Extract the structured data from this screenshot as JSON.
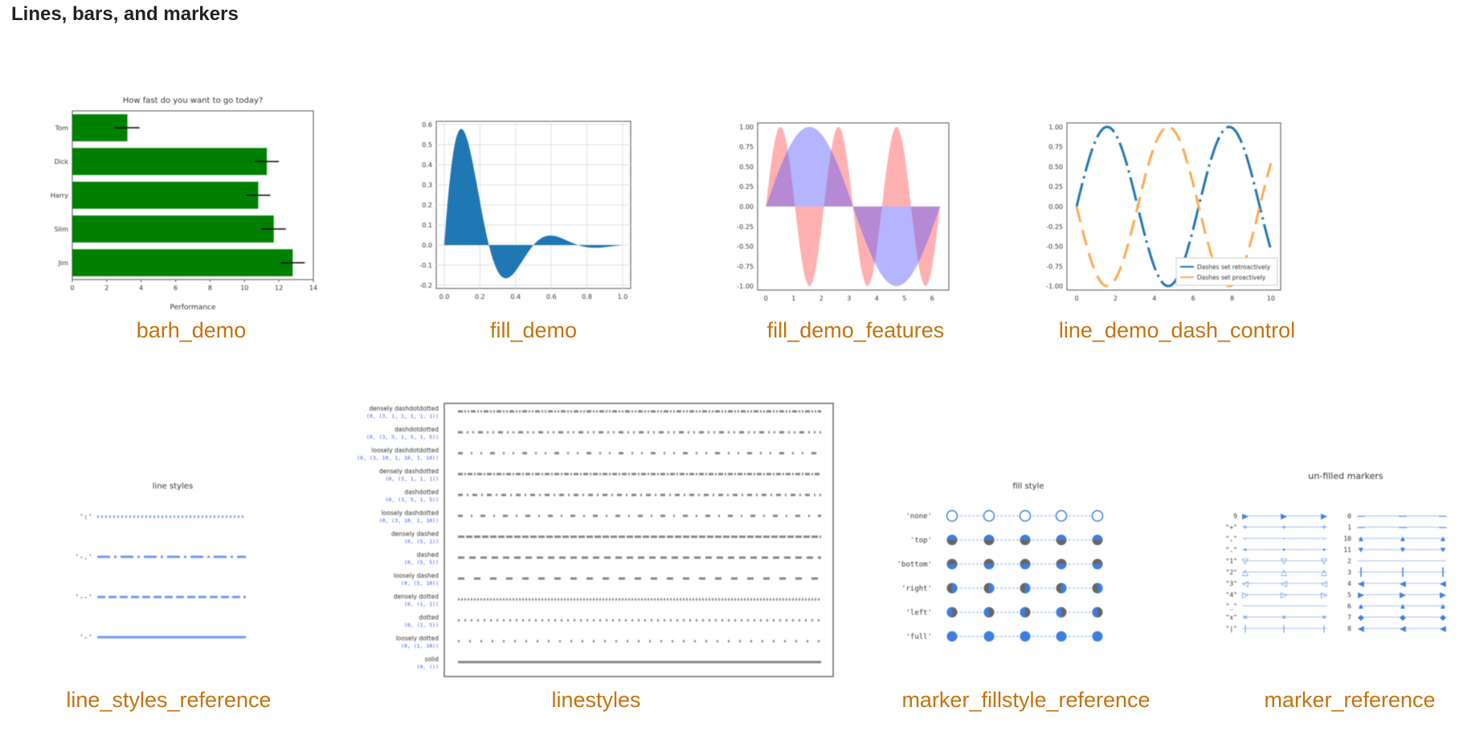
{
  "section": {
    "title": "Lines, bars, and markers"
  },
  "captions": {
    "barh_demo": "barh_demo",
    "fill_demo": "fill_demo",
    "fill_demo_features": "fill_demo_features",
    "line_demo_dash_control": "line_demo_dash_control",
    "line_styles_reference": "line_styles_reference",
    "linestyles": "linestyles",
    "marker_fillstyle_reference": "marker_fillstyle_reference",
    "marker_reference": "marker_reference"
  },
  "colors": {
    "caption_link": "#c4730f",
    "bar_green": "#008000",
    "fill_blue": "#1f77b4",
    "marker_blue": "#3d7fe0"
  },
  "chart_data": [
    {
      "type": "bar",
      "orientation": "horizontal",
      "title": "How fast do you want to go today?",
      "xlabel": "Performance",
      "categories": [
        "Tom",
        "Dick",
        "Harry",
        "Slim",
        "Jim"
      ],
      "values": [
        3.2,
        11.3,
        10.8,
        11.7,
        12.8
      ],
      "xlim": [
        0,
        14
      ],
      "xticks": [
        "0",
        "2",
        "4",
        "6",
        "8",
        "10",
        "12",
        "14"
      ]
    },
    {
      "type": "area",
      "xlim": [
        0,
        1
      ],
      "ylim": [
        -0.2,
        0.6
      ],
      "xticks": [
        "0.0",
        "0.2",
        "0.4",
        "0.6",
        "0.8",
        "1.0"
      ],
      "yticks": [
        "0.6",
        "0.5",
        "0.4",
        "0.3",
        "0.2",
        "0.1",
        "0.0",
        "-0.1",
        "-0.2"
      ],
      "grid": true
    },
    {
      "type": "area",
      "xlim": [
        -0.3,
        6.6
      ],
      "ylim": [
        -1.05,
        1.05
      ],
      "xticks": [
        "0",
        "1",
        "2",
        "3",
        "4",
        "5",
        "6"
      ],
      "yticks": [
        "1.00",
        "0.75",
        "0.50",
        "0.25",
        "0.00",
        "-0.25",
        "-0.50",
        "-0.75",
        "-1.00"
      ]
    },
    {
      "type": "line",
      "xlim": [
        -0.5,
        10.5
      ],
      "ylim": [
        -1.05,
        1.05
      ],
      "xticks": [
        "0",
        "2",
        "4",
        "6",
        "8",
        "10"
      ],
      "yticks": [
        "1.00",
        "0.75",
        "0.50",
        "0.25",
        "0.00",
        "-0.25",
        "-0.50",
        "-0.75",
        "-1.00"
      ],
      "series": [
        {
          "name": "Dashes set retroactively",
          "color": "#1f77b4"
        },
        {
          "name": "Dashes set proactively",
          "color": "#ffa94d"
        }
      ],
      "legend": "bottom-right"
    }
  ],
  "line_styles_reference": {
    "title": "line styles",
    "labels": [
      "':'",
      "'-.'",
      "'--'",
      "'-'"
    ]
  },
  "linestyles": {
    "rows": [
      {
        "name": "densely dashdotdotted",
        "tuple": "(0, (3, 1, 1, 1, 1, 1))"
      },
      {
        "name": "dashdotdotted",
        "tuple": "(0, (3, 5, 1, 5, 1, 5))"
      },
      {
        "name": "loosely dashdotdotted",
        "tuple": "(0, (3, 10, 1, 10, 1, 10))"
      },
      {
        "name": "densely dashdotted",
        "tuple": "(0, (3, 1, 1, 1))"
      },
      {
        "name": "dashdotted",
        "tuple": "(0, (3, 5, 1, 5))"
      },
      {
        "name": "loosely dashdotted",
        "tuple": "(0, (3, 10, 1, 10))"
      },
      {
        "name": "densely dashed",
        "tuple": "(0, (5, 1))"
      },
      {
        "name": "dashed",
        "tuple": "(0, (5, 5))"
      },
      {
        "name": "loosely dashed",
        "tuple": "(0, (5, 10))"
      },
      {
        "name": "densely dotted",
        "tuple": "(0, (1, 1))"
      },
      {
        "name": "dotted",
        "tuple": "(0, (1, 5))"
      },
      {
        "name": "loosely dotted",
        "tuple": "(0, (1, 10))"
      },
      {
        "name": "solid",
        "tuple": "(0, ())"
      }
    ]
  },
  "marker_fillstyle_reference": {
    "title": "fill style",
    "rows": [
      "'none'",
      "'top'",
      "'bottom'",
      "'right'",
      "'left'",
      "'full'"
    ]
  },
  "marker_reference": {
    "title": "un-filled markers",
    "left_labels": [
      "9",
      "\"+\"",
      "\",\"",
      "\".\"",
      "\"1\"",
      "\"2\"",
      "\"3\"",
      "\"4\"",
      "\"_\"",
      "\"x\"",
      "\"|\""
    ],
    "right_labels": [
      "0",
      "1",
      "10",
      "11",
      "2",
      "3",
      "4",
      "5",
      "6",
      "7",
      "8"
    ]
  }
}
